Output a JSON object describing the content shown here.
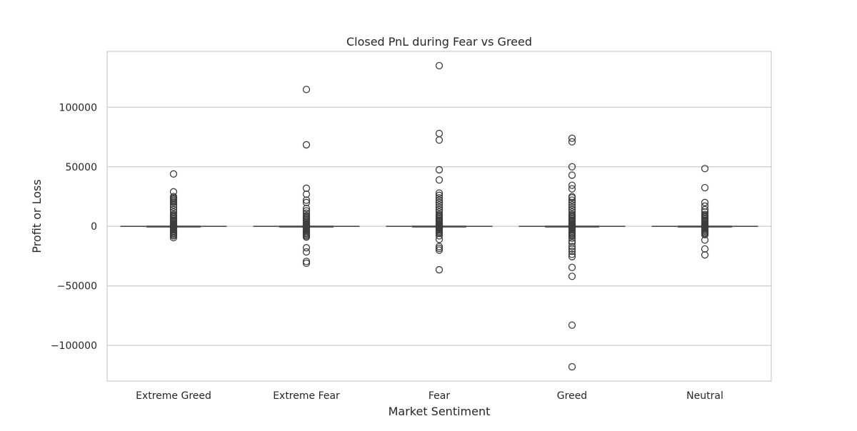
{
  "chart_data": {
    "type": "box",
    "title": "Closed PnL during Fear vs Greed",
    "xlabel": "Market Sentiment",
    "ylabel": "Profit or Loss",
    "ylim": [
      -130000,
      147000
    ],
    "yticks": [
      -100000,
      -50000,
      0,
      50000,
      100000
    ],
    "ytick_labels": [
      "−100000",
      "−50000",
      "0",
      "50000",
      "100000"
    ],
    "grid": "horizontal",
    "categories": [
      "Extreme Greed",
      "Extreme Fear",
      "Fear",
      "Greed",
      "Neutral"
    ],
    "boxes": [
      {
        "category": "Extreme Greed",
        "whisker_low": -45,
        "q1": -8,
        "median": 0,
        "q3": 45,
        "whisker_high": 45,
        "outliers": [
          44000,
          29000,
          25000,
          24000,
          23000,
          22000,
          21000,
          20000,
          18000,
          16000,
          14000,
          12000,
          10000,
          9000,
          8000,
          7000,
          6000,
          5000,
          4000,
          3000,
          2000,
          1500,
          1000,
          700,
          400,
          200,
          -200,
          -400,
          -700,
          -1000,
          -1500,
          -2000,
          -3000,
          -4000,
          -5000,
          -6000,
          -7000,
          -8000,
          -9500
        ]
      },
      {
        "category": "Extreme Fear",
        "whisker_low": -30,
        "q1": -5,
        "median": 0,
        "q3": 30,
        "whisker_high": 30,
        "outliers": [
          115000,
          68500,
          32000,
          27000,
          22000,
          20000,
          15000,
          13000,
          11000,
          9000,
          8000,
          7000,
          6000,
          5000,
          4000,
          3000,
          2000,
          1500,
          1000,
          700,
          400,
          200,
          -200,
          -400,
          -700,
          -1000,
          -1500,
          -2000,
          -3000,
          -4000,
          -5000,
          -6000,
          -7000,
          -8000,
          -9000,
          -18000,
          -21500,
          -29500,
          -31000
        ]
      },
      {
        "category": "Fear",
        "whisker_low": -60,
        "q1": -10,
        "median": 0,
        "q3": 60,
        "whisker_high": 60,
        "outliers": [
          135000,
          78000,
          72500,
          47500,
          39000,
          28000,
          26000,
          24000,
          22000,
          20000,
          18000,
          16000,
          14000,
          12000,
          10000,
          9000,
          8000,
          7000,
          6000,
          5000,
          4000,
          3000,
          2000,
          1500,
          1000,
          700,
          400,
          200,
          -200,
          -400,
          -700,
          -1000,
          -1500,
          -2000,
          -3000,
          -4000,
          -5000,
          -6000,
          -8000,
          -11000,
          -17000,
          -18500,
          -20000,
          -36500
        ]
      },
      {
        "category": "Greed",
        "whisker_low": -50,
        "q1": -10,
        "median": 0,
        "q3": 50,
        "whisker_high": 50,
        "outliers": [
          74000,
          71000,
          50000,
          43000,
          34500,
          31500,
          25000,
          24000,
          22000,
          20000,
          18000,
          16000,
          14000,
          12000,
          10000,
          9000,
          8000,
          7000,
          6000,
          5000,
          4000,
          3000,
          2000,
          1500,
          1000,
          700,
          400,
          200,
          -200,
          -400,
          -700,
          -1000,
          -1500,
          -2000,
          -3000,
          -4000,
          -5000,
          -6000,
          -7000,
          -8000,
          -10000,
          -12500,
          -14000,
          -17000,
          -19000,
          -21000,
          -23500,
          -25500,
          -34500,
          -42000,
          -83000,
          -118000
        ]
      },
      {
        "category": "Neutral",
        "whisker_low": -40,
        "q1": -8,
        "median": 0,
        "q3": 40,
        "whisker_high": 40,
        "outliers": [
          48500,
          32500,
          20000,
          17000,
          14000,
          12000,
          10000,
          9000,
          8000,
          7000,
          6000,
          5000,
          4000,
          3000,
          2000,
          1500,
          1000,
          700,
          400,
          200,
          -200,
          -400,
          -700,
          -1000,
          -1500,
          -2000,
          -3000,
          -4000,
          -5000,
          -6000,
          -7000,
          -11500,
          -19000,
          -24000
        ]
      }
    ],
    "box_color": "#8c8c8c",
    "line_color": "#4d4d4d",
    "grid_color": "#cccccc",
    "spine_color": "#cccccc"
  }
}
